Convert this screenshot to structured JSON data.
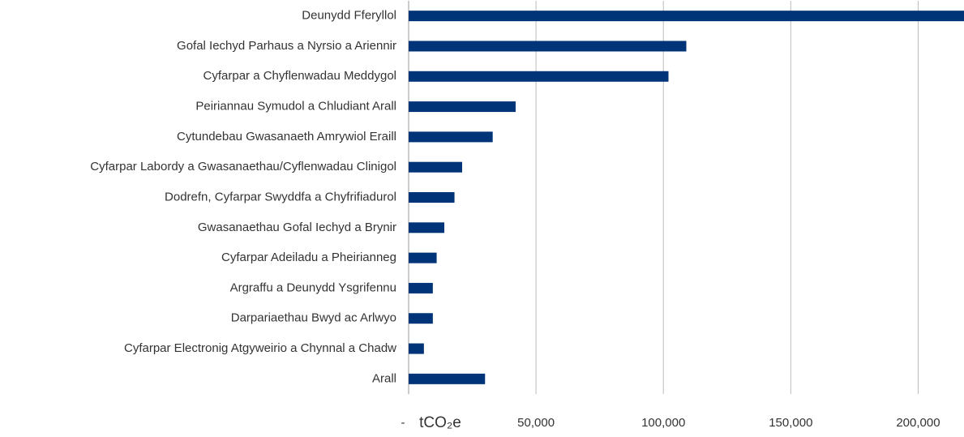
{
  "chart_data": {
    "type": "hbar",
    "categories": [
      "Deunydd Fferyllol",
      "Gofal Iechyd Parhaus a Nyrsio a Ariennir",
      "Cyfarpar a Chyflenwadau Meddygol",
      "Peiriannau Symudol a Chludiant Arall",
      "Cytundebau Gwasanaeth Amrywiol Eraill",
      "Cyfarpar Labordy a Gwasanaethau/Cyflenwadau Clinigol",
      "Dodrefn, Cyfarpar Swyddfa a Chyfrifiadurol",
      "Gwasanaethau Gofal Iechyd a Brynir",
      "Cyfarpar Adeiladu a Pheirianneg",
      "Argraffu a Deunydd Ysgrifennu",
      "Darpariaethau Bwyd ac Arlwyo",
      "Cyfarpar Electronig Atgyweirio a Chynnal a Chadw",
      "Arall"
    ],
    "values": [
      218000,
      109000,
      102000,
      42000,
      33000,
      21000,
      18000,
      14000,
      11000,
      9500,
      9500,
      6000,
      30000
    ],
    "color": "#003478",
    "xlabel": "tCO₂e",
    "xlim": [
      0,
      218000
    ],
    "xticks": [
      {
        "value": 0,
        "label": "-"
      },
      {
        "value": 50000,
        "label": "50,000"
      },
      {
        "value": 100000,
        "label": "100,000"
      },
      {
        "value": 150000,
        "label": "150,000"
      },
      {
        "value": 200000,
        "label": "200,000"
      }
    ],
    "grid": true
  }
}
